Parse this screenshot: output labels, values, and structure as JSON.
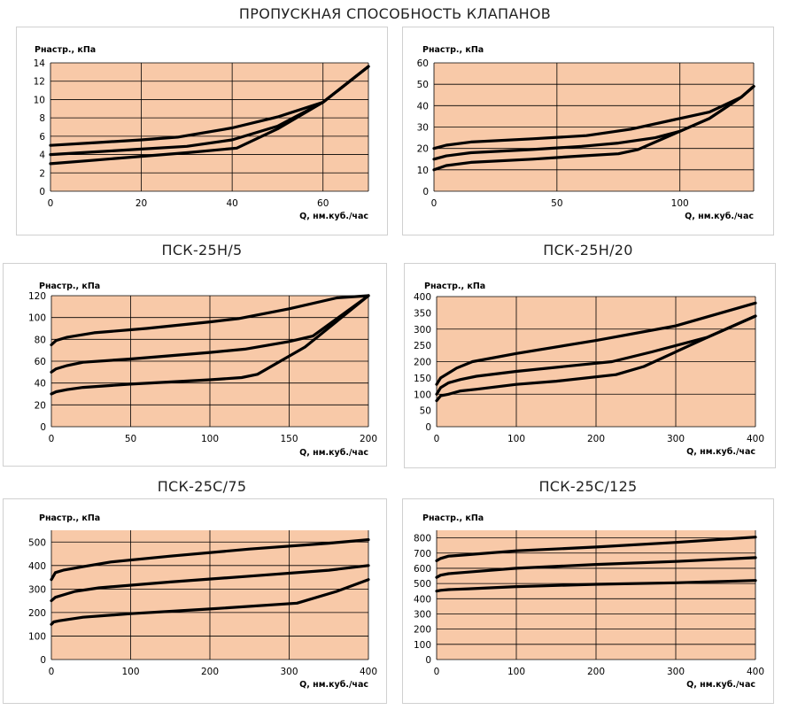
{
  "title": "ПРОПУСКНАЯ СПОСОБНОСТЬ КЛАПАНОВ",
  "colors": {
    "plot_bg": "#F8C9A8",
    "grid": "#000000",
    "line": "#000000"
  },
  "chart_data": [
    {
      "type": "line",
      "title": "",
      "ylabel": "Pнастр., кПа",
      "xlabel": "Q, нм.куб./час",
      "xlim": [
        0,
        70
      ],
      "ylim": [
        0,
        14
      ],
      "xticks": [
        0,
        20,
        40,
        60
      ],
      "yticks": [
        0,
        2,
        4,
        6,
        8,
        10,
        12,
        14
      ],
      "xgrid": [
        0,
        20,
        40,
        60,
        70
      ],
      "ygrid": [
        0,
        2,
        4,
        6,
        8,
        10,
        12,
        14
      ],
      "series": [
        {
          "x": [
            0,
            10,
            20,
            28,
            40,
            50,
            60,
            70
          ],
          "y": [
            5,
            5.3,
            5.6,
            5.9,
            6.9,
            8.1,
            9.7,
            13.6
          ]
        },
        {
          "x": [
            0,
            10,
            20,
            30,
            40,
            50,
            60,
            70
          ],
          "y": [
            4,
            4.3,
            4.6,
            4.9,
            5.6,
            7.1,
            9.7,
            13.6
          ]
        },
        {
          "x": [
            0,
            10,
            20,
            30,
            41,
            50,
            60,
            70
          ],
          "y": [
            3,
            3.4,
            3.8,
            4.2,
            4.7,
            6.8,
            9.7,
            13.6
          ]
        }
      ]
    },
    {
      "type": "line",
      "title": "",
      "ylabel": "Pнастр., кПа",
      "xlabel": "Q, нм.куб./час",
      "xlim": [
        0,
        130
      ],
      "ylim": [
        0,
        60
      ],
      "xticks": [
        0,
        50,
        100
      ],
      "yticks": [
        0,
        10,
        20,
        30,
        40,
        50,
        60
      ],
      "xgrid": [
        0,
        50,
        100,
        130
      ],
      "ygrid": [
        0,
        10,
        20,
        30,
        40,
        50,
        60
      ],
      "series": [
        {
          "x": [
            0,
            5,
            15,
            40,
            62,
            80,
            100,
            112,
            125,
            130
          ],
          "y": [
            20,
            21.5,
            23,
            24.5,
            26,
            29,
            34,
            37,
            44,
            49
          ]
        },
        {
          "x": [
            0,
            5,
            15,
            40,
            60,
            75,
            90,
            100,
            112,
            125,
            130
          ],
          "y": [
            15,
            16.5,
            18,
            19.5,
            21,
            22.5,
            25,
            28,
            34,
            44,
            49
          ]
        },
        {
          "x": [
            0,
            5,
            15,
            40,
            60,
            75,
            83,
            100,
            112,
            125,
            130
          ],
          "y": [
            10,
            12,
            13.5,
            15,
            16.5,
            17.5,
            19.5,
            28,
            34,
            44,
            49
          ]
        }
      ]
    },
    {
      "type": "line",
      "title": "ПСК-25Н/5",
      "ylabel": "Pнастр., кПа",
      "xlabel": "Q, нм.куб./час",
      "xlim": [
        0,
        200
      ],
      "ylim": [
        0,
        120
      ],
      "xticks": [
        0,
        50,
        100,
        150,
        200
      ],
      "yticks": [
        0,
        20,
        40,
        60,
        80,
        100,
        120
      ],
      "xgrid": [
        0,
        50,
        100,
        150,
        200
      ],
      "ygrid": [
        0,
        20,
        40,
        60,
        80,
        100,
        120
      ],
      "series": [
        {
          "x": [
            0,
            3,
            10,
            27,
            60,
            100,
            118,
            150,
            180,
            200
          ],
          "y": [
            75,
            79,
            82,
            86,
            90,
            96,
            99,
            108,
            118,
            120
          ]
        },
        {
          "x": [
            0,
            3,
            10,
            20,
            50,
            100,
            122,
            150,
            165,
            200
          ],
          "y": [
            50,
            53,
            56,
            59,
            62,
            68,
            71,
            78,
            83,
            120
          ]
        },
        {
          "x": [
            0,
            3,
            10,
            20,
            50,
            100,
            120,
            130,
            160,
            200
          ],
          "y": [
            30,
            32,
            34,
            36,
            39,
            43,
            45,
            48,
            73,
            120
          ]
        }
      ]
    },
    {
      "type": "line",
      "title": "ПСК-25Н/20",
      "ylabel": "Pнастр., кПа",
      "xlabel": "Q, нм.куб./час",
      "xlim": [
        0,
        400
      ],
      "ylim": [
        0,
        400
      ],
      "xticks": [
        0,
        100,
        200,
        300,
        400
      ],
      "yticks": [
        0,
        50,
        100,
        150,
        200,
        250,
        300,
        350,
        400
      ],
      "xgrid": [
        0,
        100,
        200,
        300,
        400
      ],
      "ygrid": [
        0,
        100,
        200,
        300,
        400
      ],
      "series": [
        {
          "x": [
            0,
            5,
            15,
            25,
            45,
            100,
            200,
            300,
            350,
            400
          ],
          "y": [
            130,
            150,
            165,
            180,
            200,
            225,
            265,
            310,
            345,
            380
          ]
        },
        {
          "x": [
            0,
            5,
            15,
            30,
            50,
            100,
            200,
            220,
            270,
            340,
            400
          ],
          "y": [
            100,
            120,
            135,
            145,
            155,
            170,
            195,
            200,
            230,
            275,
            340
          ]
        },
        {
          "x": [
            0,
            5,
            15,
            30,
            50,
            100,
            150,
            225,
            260,
            340,
            400
          ],
          "y": [
            80,
            95,
            100,
            110,
            115,
            130,
            140,
            160,
            185,
            275,
            340
          ]
        }
      ]
    },
    {
      "type": "line",
      "title": "ПСК-25С/75",
      "ylabel": "Pнастр., кПа",
      "xlabel": "Q, нм.куб./час",
      "xlim": [
        0,
        400
      ],
      "ylim": [
        0,
        550
      ],
      "xticks": [
        0,
        100,
        200,
        300,
        400
      ],
      "yticks": [
        0,
        100,
        200,
        300,
        400,
        500
      ],
      "xgrid": [
        0,
        100,
        200,
        300,
        400
      ],
      "ygrid": [
        0,
        100,
        200,
        300,
        400,
        500
      ],
      "series": [
        {
          "x": [
            0,
            5,
            15,
            40,
            75,
            150,
            250,
            350,
            400
          ],
          "y": [
            340,
            370,
            380,
            395,
            415,
            440,
            470,
            495,
            510
          ]
        },
        {
          "x": [
            0,
            5,
            15,
            30,
            60,
            150,
            250,
            350,
            400
          ],
          "y": [
            250,
            265,
            275,
            290,
            305,
            330,
            355,
            380,
            400
          ]
        },
        {
          "x": [
            0,
            3,
            10,
            40,
            100,
            200,
            310,
            360,
            400
          ],
          "y": [
            150,
            160,
            165,
            180,
            195,
            215,
            240,
            290,
            340
          ]
        }
      ]
    },
    {
      "type": "line",
      "title": "ПСК-25С/125",
      "ylabel": "Pнастр., кПа",
      "xlabel": "Q, нм.куб./час",
      "xlim": [
        0,
        400
      ],
      "ylim": [
        0,
        850
      ],
      "xticks": [
        0,
        100,
        200,
        300,
        400
      ],
      "yticks": [
        0,
        100,
        200,
        300,
        400,
        500,
        600,
        700,
        800
      ],
      "xgrid": [
        0,
        100,
        200,
        300,
        400
      ],
      "ygrid": [
        0,
        100,
        200,
        300,
        400,
        500,
        600,
        700,
        800
      ],
      "series": [
        {
          "x": [
            0,
            5,
            15,
            40,
            100,
            200,
            300,
            400
          ],
          "y": [
            650,
            665,
            680,
            690,
            715,
            740,
            770,
            805
          ]
        },
        {
          "x": [
            0,
            5,
            15,
            40,
            100,
            200,
            300,
            400
          ],
          "y": [
            540,
            555,
            565,
            575,
            600,
            625,
            645,
            670
          ]
        },
        {
          "x": [
            0,
            5,
            15,
            40,
            100,
            200,
            300,
            400
          ],
          "y": [
            450,
            455,
            460,
            465,
            480,
            495,
            505,
            520
          ]
        }
      ]
    }
  ]
}
